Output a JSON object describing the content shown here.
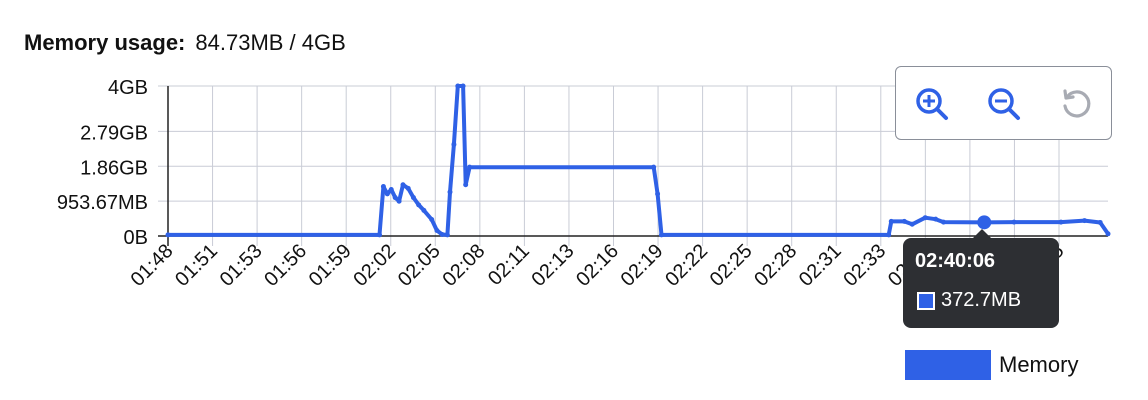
{
  "header": {
    "label": "Memory usage:",
    "value": "84.73MB / 4GB"
  },
  "toolbar": {
    "zoom_in_icon": "zoom-in-icon",
    "zoom_out_icon": "zoom-out-icon",
    "reset_icon": "reset-zoom-icon"
  },
  "tooltip": {
    "time": "02:40:06",
    "value": "372.7MB"
  },
  "legend": {
    "label": "Memory"
  },
  "colors": {
    "series": "#2f61e6",
    "grid": "#c9ccd6",
    "axis": "#222222",
    "tooltip_bg": "#2d2f33"
  },
  "chart_data": {
    "type": "line",
    "title": "",
    "xlabel": "",
    "ylabel": "",
    "y_unit": "MB",
    "ylim": [
      0,
      4096
    ],
    "y_ticks": [
      {
        "value": 0,
        "label": "0B"
      },
      {
        "value": 953.67,
        "label": "953.67MB"
      },
      {
        "value": 1904.6,
        "label": "1.86GB"
      },
      {
        "value": 2857,
        "label": "2.79GB"
      },
      {
        "value": 4096,
        "label": "4GB"
      }
    ],
    "x_ticks": [
      "01:48",
      "01:51",
      "01:53",
      "01:56",
      "01:59",
      "02:02",
      "02:05",
      "02:08",
      "02:11",
      "02:13",
      "02:16",
      "02:19",
      "02:22",
      "02:25",
      "02:28",
      "02:31",
      "02:33",
      "02:36",
      "02:39",
      "02:42",
      "02:45"
    ],
    "grid": true,
    "legend_position": "bottom-right",
    "highlight": {
      "x": "02:40:06",
      "y": 372.7
    },
    "series": [
      {
        "name": "Memory",
        "points": [
          [
            "01:48:00",
            30
          ],
          [
            "02:01:30",
            30
          ],
          [
            "02:01:45",
            1350
          ],
          [
            "02:02:00",
            1150
          ],
          [
            "02:02:15",
            1270
          ],
          [
            "02:02:30",
            1050
          ],
          [
            "02:02:45",
            950
          ],
          [
            "02:03:00",
            1400
          ],
          [
            "02:03:20",
            1300
          ],
          [
            "02:03:40",
            1050
          ],
          [
            "02:04:00",
            850
          ],
          [
            "02:04:20",
            700
          ],
          [
            "02:04:50",
            450
          ],
          [
            "02:05:10",
            150
          ],
          [
            "02:05:30",
            40
          ],
          [
            "02:05:50",
            30
          ],
          [
            "02:06:00",
            1200
          ],
          [
            "02:06:15",
            2500
          ],
          [
            "02:06:30",
            4096
          ],
          [
            "02:06:50",
            4096
          ],
          [
            "02:07:00",
            1400
          ],
          [
            "02:07:15",
            1880
          ],
          [
            "02:19:00",
            1880
          ],
          [
            "02:19:15",
            1150
          ],
          [
            "02:19:30",
            30
          ],
          [
            "02:34:00",
            30
          ],
          [
            "02:34:10",
            400
          ],
          [
            "02:35:00",
            400
          ],
          [
            "02:35:30",
            320
          ],
          [
            "02:36:20",
            500
          ],
          [
            "02:37:00",
            460
          ],
          [
            "02:37:30",
            380
          ],
          [
            "02:40:06",
            372.7
          ],
          [
            "02:42:00",
            380
          ],
          [
            "02:45:00",
            380
          ],
          [
            "02:46:30",
            420
          ],
          [
            "02:47:30",
            370
          ],
          [
            "02:48:00",
            60
          ]
        ]
      }
    ]
  }
}
